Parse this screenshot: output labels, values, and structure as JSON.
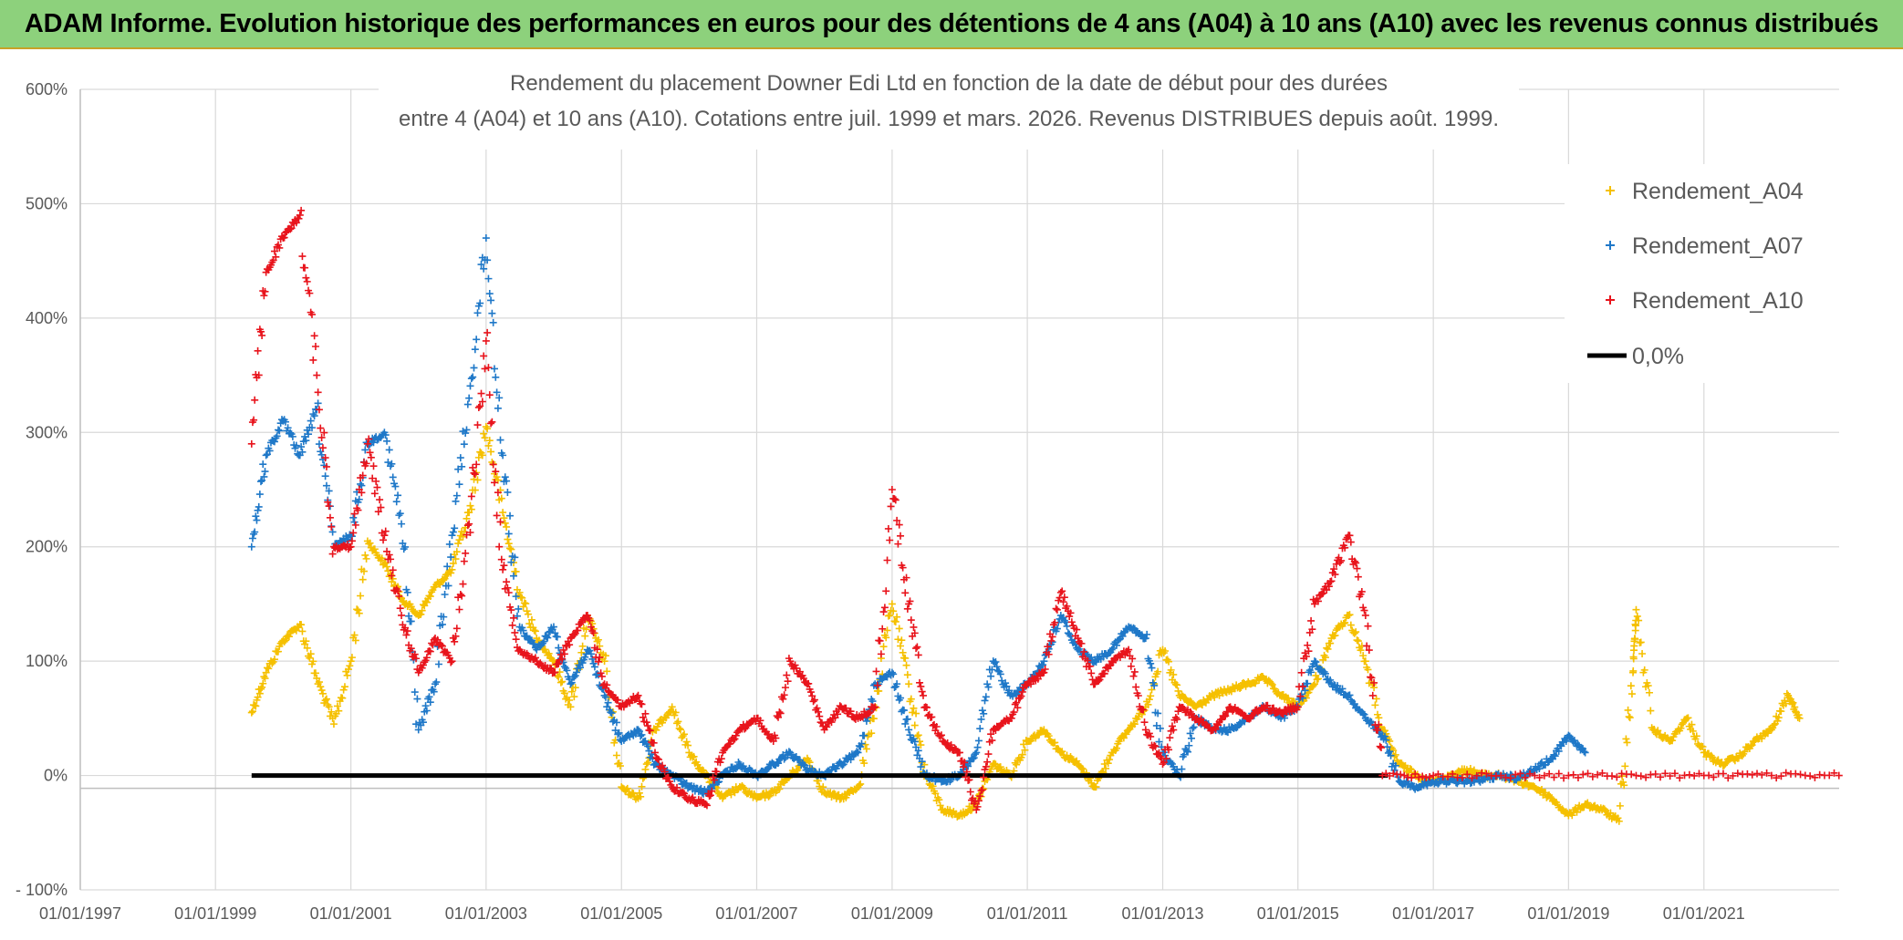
{
  "banner": {
    "title": "ADAM Informe. Evolution historique des performances en euros pour des détentions de 4 ans (A04) à 10 ans (A10) avec les revenus connus distribués"
  },
  "chart_data": {
    "type": "scatter",
    "title_lines": [
      "Rendement du placement Downer Edi Ltd en fonction de la date de début pour des durées",
      "entre 4 (A04) et 10 ans (A10). Cotations entre juil. 1999 et mars. 2026. Revenus DISTRIBUES depuis août. 1999."
    ],
    "xlabel": "",
    "ylabel": "",
    "x_ticks": [
      "01/01/1997",
      "01/01/1999",
      "01/01/2001",
      "01/01/2003",
      "01/01/2005",
      "01/01/2007",
      "01/01/2009",
      "01/01/2011",
      "01/01/2013",
      "01/01/2015",
      "01/01/2017",
      "01/01/2019",
      "01/01/2021"
    ],
    "y_ticks": [
      "600%",
      "500%",
      "400%",
      "300%",
      "200%",
      "100%",
      "0%",
      "- 100%"
    ],
    "xlim": [
      "1997-01-01",
      "2023-01-01"
    ],
    "ylim": [
      -100,
      600
    ],
    "grid": true,
    "legend_position": "top-right",
    "colors": {
      "A04": "#f5c000",
      "A07": "#1f78c8",
      "A10": "#e8141c",
      "zero": "#000000"
    },
    "series": [
      {
        "name": "Rendement_A04",
        "marker": "+",
        "points": [
          [
            "1999-07-15",
            55
          ],
          [
            "1999-10-01",
            90
          ],
          [
            "2000-01-01",
            118
          ],
          [
            "2000-04-01",
            132
          ],
          [
            "2000-07-01",
            85
          ],
          [
            "2000-10-01",
            45
          ],
          [
            "2001-01-01",
            100
          ],
          [
            "2001-04-01",
            205
          ],
          [
            "2001-07-01",
            185
          ],
          [
            "2001-10-01",
            155
          ],
          [
            "2002-01-01",
            140
          ],
          [
            "2002-04-01",
            165
          ],
          [
            "2002-07-01",
            180
          ],
          [
            "2002-10-01",
            230
          ],
          [
            "2003-01-01",
            305
          ],
          [
            "2003-04-01",
            230
          ],
          [
            "2003-07-01",
            160
          ],
          [
            "2003-10-01",
            120
          ],
          [
            "2004-01-01",
            100
          ],
          [
            "2004-04-01",
            60
          ],
          [
            "2004-07-01",
            140
          ],
          [
            "2004-10-01",
            100
          ],
          [
            "2005-01-01",
            -10
          ],
          [
            "2005-04-01",
            -20
          ],
          [
            "2005-07-01",
            40
          ],
          [
            "2005-10-01",
            60
          ],
          [
            "2006-01-01",
            20
          ],
          [
            "2006-04-01",
            0
          ],
          [
            "2006-07-01",
            -20
          ],
          [
            "2006-10-01",
            -10
          ],
          [
            "2007-01-01",
            -20
          ],
          [
            "2007-04-01",
            -15
          ],
          [
            "2007-07-01",
            0
          ],
          [
            "2007-10-01",
            15
          ],
          [
            "2008-01-01",
            -15
          ],
          [
            "2008-04-01",
            -20
          ],
          [
            "2008-07-01",
            -10
          ],
          [
            "2008-10-01",
            60
          ],
          [
            "2009-01-01",
            150
          ],
          [
            "2009-04-01",
            80
          ],
          [
            "2009-07-01",
            0
          ],
          [
            "2009-10-01",
            -30
          ],
          [
            "2010-01-01",
            -35
          ],
          [
            "2010-04-01",
            -25
          ],
          [
            "2010-07-01",
            10
          ],
          [
            "2010-10-01",
            0
          ],
          [
            "2011-01-01",
            30
          ],
          [
            "2011-04-01",
            40
          ],
          [
            "2011-07-01",
            20
          ],
          [
            "2011-10-01",
            10
          ],
          [
            "2012-01-01",
            -10
          ],
          [
            "2012-04-01",
            20
          ],
          [
            "2012-07-01",
            40
          ],
          [
            "2012-10-01",
            60
          ],
          [
            "2013-01-01",
            110
          ],
          [
            "2013-04-01",
            70
          ],
          [
            "2013-07-01",
            60
          ],
          [
            "2013-10-01",
            70
          ],
          [
            "2014-01-01",
            75
          ],
          [
            "2014-04-01",
            80
          ],
          [
            "2014-07-01",
            85
          ],
          [
            "2014-10-01",
            70
          ],
          [
            "2015-01-01",
            60
          ],
          [
            "2015-04-01",
            80
          ],
          [
            "2015-07-01",
            120
          ],
          [
            "2015-10-01",
            140
          ],
          [
            "2016-01-01",
            100
          ],
          [
            "2016-04-01",
            40
          ],
          [
            "2016-07-01",
            10
          ],
          [
            "2016-10-01",
            0
          ],
          [
            "2017-01-01",
            -5
          ],
          [
            "2017-04-01",
            0
          ],
          [
            "2017-07-01",
            5
          ],
          [
            "2017-10-01",
            0
          ],
          [
            "2018-01-01",
            0
          ],
          [
            "2018-04-01",
            -5
          ],
          [
            "2018-07-01",
            -10
          ],
          [
            "2018-10-01",
            -20
          ],
          [
            "2019-01-01",
            -35
          ],
          [
            "2019-04-01",
            -25
          ],
          [
            "2019-07-01",
            -30
          ],
          [
            "2019-10-01",
            -40
          ],
          [
            "2019-12-15",
            90
          ],
          [
            "2020-01-01",
            145
          ],
          [
            "2020-04-01",
            40
          ],
          [
            "2020-07-01",
            30
          ],
          [
            "2020-10-01",
            50
          ],
          [
            "2021-01-01",
            20
          ],
          [
            "2021-04-01",
            10
          ],
          [
            "2021-07-01",
            15
          ],
          [
            "2021-10-01",
            30
          ],
          [
            "2022-01-01",
            40
          ],
          [
            "2022-04-01",
            70
          ],
          [
            "2022-06-01",
            50
          ]
        ]
      },
      {
        "name": "Rendement_A07",
        "marker": "+",
        "points": [
          [
            "1999-07-15",
            200
          ],
          [
            "1999-10-01",
            280
          ],
          [
            "2000-01-01",
            310
          ],
          [
            "2000-04-01",
            280
          ],
          [
            "2000-07-01",
            320
          ],
          [
            "2000-10-01",
            200
          ],
          [
            "2001-01-01",
            210
          ],
          [
            "2001-04-01",
            290
          ],
          [
            "2001-07-01",
            300
          ],
          [
            "2001-10-01",
            220
          ],
          [
            "2002-01-01",
            40
          ],
          [
            "2002-04-01",
            80
          ],
          [
            "2002-07-01",
            210
          ],
          [
            "2002-10-01",
            330
          ],
          [
            "2003-01-01",
            470
          ],
          [
            "2003-04-01",
            280
          ],
          [
            "2003-07-01",
            130
          ],
          [
            "2003-10-01",
            110
          ],
          [
            "2004-01-01",
            130
          ],
          [
            "2004-04-01",
            80
          ],
          [
            "2004-07-01",
            110
          ],
          [
            "2004-10-01",
            70
          ],
          [
            "2005-01-01",
            30
          ],
          [
            "2005-04-01",
            40
          ],
          [
            "2005-07-01",
            10
          ],
          [
            "2005-10-01",
            0
          ],
          [
            "2006-01-01",
            -10
          ],
          [
            "2006-04-01",
            -15
          ],
          [
            "2006-07-01",
            0
          ],
          [
            "2006-10-01",
            10
          ],
          [
            "2007-01-01",
            0
          ],
          [
            "2007-04-01",
            10
          ],
          [
            "2007-07-01",
            20
          ],
          [
            "2007-10-01",
            5
          ],
          [
            "2008-01-01",
            0
          ],
          [
            "2008-04-01",
            10
          ],
          [
            "2008-07-01",
            20
          ],
          [
            "2008-10-01",
            80
          ],
          [
            "2009-01-01",
            90
          ],
          [
            "2009-04-01",
            40
          ],
          [
            "2009-07-01",
            0
          ],
          [
            "2009-10-01",
            -5
          ],
          [
            "2010-01-01",
            0
          ],
          [
            "2010-04-01",
            20
          ],
          [
            "2010-07-01",
            100
          ],
          [
            "2010-10-01",
            70
          ],
          [
            "2011-01-01",
            80
          ],
          [
            "2011-04-01",
            100
          ],
          [
            "2011-07-01",
            140
          ],
          [
            "2011-10-01",
            110
          ],
          [
            "2012-01-01",
            100
          ],
          [
            "2012-04-01",
            110
          ],
          [
            "2012-07-01",
            130
          ],
          [
            "2012-10-01",
            120
          ],
          [
            "2013-01-01",
            20
          ],
          [
            "2013-04-01",
            0
          ],
          [
            "2013-07-01",
            50
          ],
          [
            "2013-10-01",
            40
          ],
          [
            "2014-01-01",
            40
          ],
          [
            "2014-04-01",
            50
          ],
          [
            "2014-07-01",
            60
          ],
          [
            "2014-10-01",
            50
          ],
          [
            "2015-01-01",
            60
          ],
          [
            "2015-04-01",
            100
          ],
          [
            "2015-07-01",
            80
          ],
          [
            "2015-10-01",
            70
          ],
          [
            "2016-01-01",
            50
          ],
          [
            "2016-04-01",
            35
          ],
          [
            "2016-07-01",
            -5
          ],
          [
            "2016-10-01",
            -10
          ],
          [
            "2017-01-01",
            -5
          ],
          [
            "2017-04-01",
            -5
          ],
          [
            "2017-07-01",
            -5
          ],
          [
            "2017-10-01",
            -3
          ],
          [
            "2018-01-01",
            0
          ],
          [
            "2018-04-01",
            -2
          ],
          [
            "2018-07-01",
            5
          ],
          [
            "2018-10-01",
            15
          ],
          [
            "2019-01-01",
            35
          ],
          [
            "2019-04-01",
            20
          ]
        ]
      },
      {
        "name": "Rendement_A10",
        "marker": "+",
        "points": [
          [
            "1999-07-15",
            290
          ],
          [
            "1999-10-01",
            440
          ],
          [
            "2000-01-01",
            470
          ],
          [
            "2000-04-01",
            490
          ],
          [
            "2000-07-01",
            350
          ],
          [
            "2000-10-01",
            200
          ],
          [
            "2001-01-01",
            200
          ],
          [
            "2001-04-01",
            290
          ],
          [
            "2001-07-01",
            210
          ],
          [
            "2001-10-01",
            140
          ],
          [
            "2002-01-01",
            90
          ],
          [
            "2002-04-01",
            120
          ],
          [
            "2002-07-01",
            100
          ],
          [
            "2002-10-01",
            220
          ],
          [
            "2003-01-01",
            380
          ],
          [
            "2003-04-01",
            180
          ],
          [
            "2003-07-01",
            110
          ],
          [
            "2003-10-01",
            100
          ],
          [
            "2004-01-01",
            90
          ],
          [
            "2004-04-01",
            120
          ],
          [
            "2004-07-01",
            140
          ],
          [
            "2004-10-01",
            80
          ],
          [
            "2005-01-01",
            60
          ],
          [
            "2005-04-01",
            70
          ],
          [
            "2005-07-01",
            20
          ],
          [
            "2005-10-01",
            -10
          ],
          [
            "2006-01-01",
            -20
          ],
          [
            "2006-04-01",
            -25
          ],
          [
            "2006-07-01",
            20
          ],
          [
            "2006-10-01",
            40
          ],
          [
            "2007-01-01",
            50
          ],
          [
            "2007-04-01",
            30
          ],
          [
            "2007-07-01",
            100
          ],
          [
            "2007-10-01",
            80
          ],
          [
            "2008-01-01",
            40
          ],
          [
            "2008-04-01",
            60
          ],
          [
            "2008-07-01",
            50
          ],
          [
            "2008-10-01",
            60
          ],
          [
            "2009-01-01",
            250
          ],
          [
            "2009-04-01",
            150
          ],
          [
            "2009-07-01",
            60
          ],
          [
            "2009-10-01",
            30
          ],
          [
            "2010-01-01",
            20
          ],
          [
            "2010-04-01",
            -30
          ],
          [
            "2010-07-01",
            40
          ],
          [
            "2010-10-01",
            50
          ],
          [
            "2011-01-01",
            80
          ],
          [
            "2011-04-01",
            90
          ],
          [
            "2011-07-01",
            160
          ],
          [
            "2011-10-01",
            120
          ],
          [
            "2012-01-01",
            80
          ],
          [
            "2012-04-01",
            100
          ],
          [
            "2012-07-01",
            110
          ],
          [
            "2012-10-01",
            40
          ],
          [
            "2013-01-01",
            10
          ],
          [
            "2013-04-01",
            60
          ],
          [
            "2013-07-01",
            50
          ],
          [
            "2013-10-01",
            40
          ],
          [
            "2014-01-01",
            60
          ],
          [
            "2014-04-01",
            50
          ],
          [
            "2014-07-01",
            60
          ],
          [
            "2014-10-01",
            55
          ],
          [
            "2015-01-01",
            60
          ],
          [
            "2015-04-01",
            150
          ],
          [
            "2015-07-01",
            170
          ],
          [
            "2015-10-01",
            210
          ],
          [
            "2016-01-01",
            140
          ],
          [
            "2016-04-01",
            0
          ],
          [
            "2017-01-01",
            0
          ],
          [
            "2018-01-01",
            0
          ],
          [
            "2019-01-01",
            0
          ],
          [
            "2020-01-01",
            0
          ],
          [
            "2021-01-01",
            0
          ],
          [
            "2022-01-01",
            0
          ],
          [
            "2022-12-31",
            0
          ]
        ]
      },
      {
        "name": "0,0%",
        "type": "line",
        "points": [
          [
            "1999-07-15",
            0
          ],
          [
            "2016-05-01",
            0
          ]
        ]
      }
    ]
  }
}
